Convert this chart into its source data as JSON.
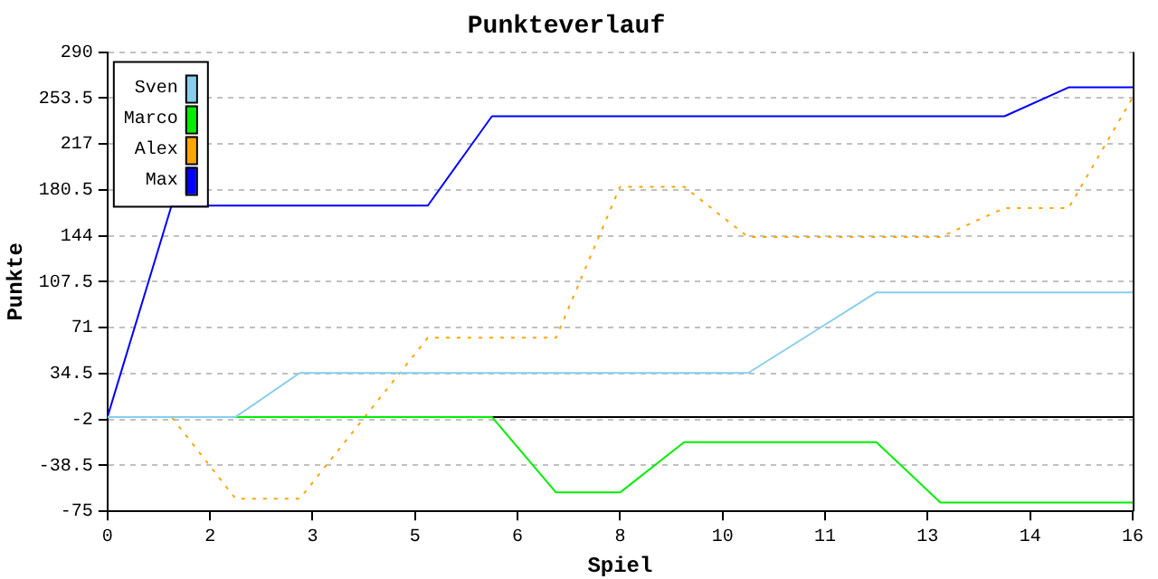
{
  "chart_data": {
    "type": "line",
    "title": "Punkteverlauf",
    "xlabel": "Spiel",
    "ylabel": "Punkte",
    "x": [
      0,
      1,
      2,
      3,
      4,
      5,
      6,
      7,
      8,
      9,
      10,
      11,
      12,
      13,
      14,
      15,
      16
    ],
    "xlim": [
      0,
      16
    ],
    "xticks": [
      0,
      {
        "value": 1.6,
        "label": "2"
      },
      {
        "value": 3.2,
        "label": "3"
      },
      {
        "value": 4.8,
        "label": "5"
      },
      {
        "value": 6.4,
        "label": "6"
      },
      8,
      {
        "value": 9.6,
        "label": "10"
      },
      {
        "value": 11.2,
        "label": "11"
      },
      {
        "value": 12.8,
        "label": "13"
      },
      {
        "value": 14.4,
        "label": "14"
      },
      16
    ],
    "ylim": [
      -75,
      290
    ],
    "yticks": [
      -75,
      -38.5,
      -2,
      34.5,
      71,
      107.5,
      144,
      180.5,
      217,
      253.5,
      290
    ],
    "grid": "y",
    "legend": "top left",
    "marker": "none",
    "ref_lines": [
      {
        "axis": "y",
        "value": 0,
        "color": "#000000"
      }
    ],
    "series": [
      {
        "name": "Sven",
        "color": "#87ceeb",
        "line_style": "solid",
        "values": [
          0,
          0,
          0,
          35,
          35,
          35,
          35,
          35,
          35,
          35,
          35,
          67,
          99,
          99,
          99,
          99,
          99
        ]
      },
      {
        "name": "Marco",
        "color": "#00ee00",
        "line_style": "solid",
        "values": [
          0,
          0,
          0,
          0,
          0,
          0,
          0,
          -60,
          -60,
          -20,
          -20,
          -20,
          -20,
          -68,
          -68,
          -68,
          -68
        ]
      },
      {
        "name": "Alex",
        "color": "#ffa500",
        "line_style": "dotted",
        "values": [
          0,
          0,
          -65,
          -65,
          -1,
          63,
          63,
          63,
          183,
          183,
          143,
          143,
          143,
          143,
          166,
          166,
          254
        ]
      },
      {
        "name": "Max",
        "color": "#0000ff",
        "line_style": "solid",
        "values": [
          0,
          168,
          168,
          168,
          168,
          168,
          239,
          239,
          239,
          239,
          239,
          239,
          239,
          239,
          239,
          262,
          262
        ]
      }
    ]
  }
}
